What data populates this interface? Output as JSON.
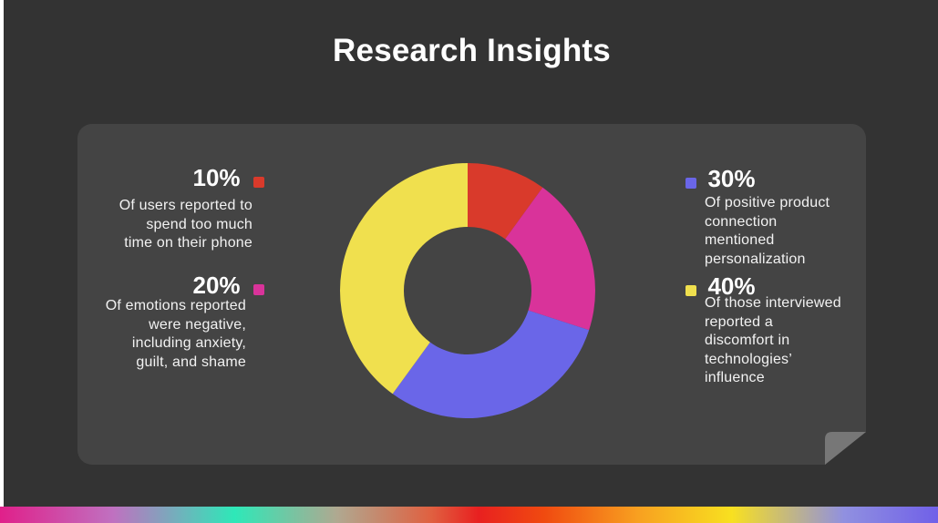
{
  "slide": {
    "title": "Research Insights"
  },
  "stats": [
    {
      "percent": "10%",
      "description_lines": [
        "Of users reported to",
        "spend too much",
        "time on their phone"
      ],
      "color": "#d93a2b"
    },
    {
      "percent": "20%",
      "description_lines": [
        "Of emotions reported",
        "were negative,",
        "including anxiety,",
        "guilt, and shame"
      ],
      "color": "#d9339a"
    },
    {
      "percent": "30%",
      "description_lines": [
        "Of positive product",
        "connection",
        "mentioned",
        "personalization"
      ],
      "color": "#6a66e8"
    },
    {
      "percent": "40%",
      "description_lines": [
        "Of those interviewed",
        "reported a",
        "discomfort in",
        "technologies’",
        "influence"
      ],
      "color": "#f0e04e"
    }
  ],
  "chart_data": {
    "type": "pie",
    "style": "donut",
    "categories": [
      "10%",
      "20%",
      "30%",
      "40%"
    ],
    "values": [
      10,
      20,
      30,
      40
    ],
    "colors": [
      "#d93a2b",
      "#d9339a",
      "#6a66e8",
      "#f0e04e"
    ]
  },
  "colors": {
    "background": "#333333",
    "card": "#444444",
    "title": "#ffffff"
  }
}
